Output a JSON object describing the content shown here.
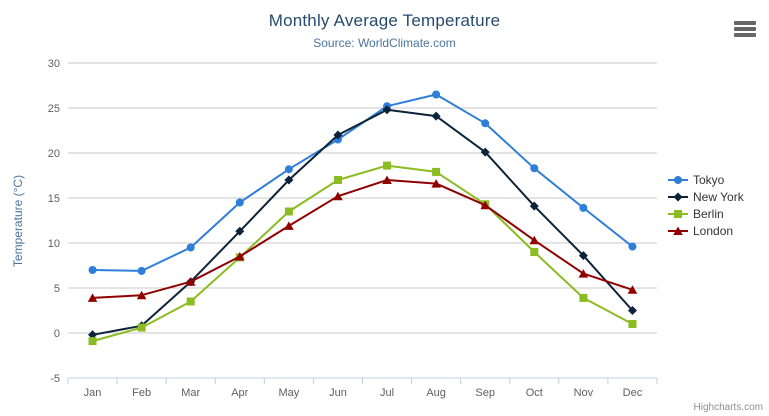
{
  "chart": {
    "title": "Monthly Average Temperature",
    "subtitle": "Source: WorldClimate.com",
    "credit": "Highcharts.com",
    "export_icon": "hamburger-icon"
  },
  "chart_data": {
    "type": "line",
    "title": "Monthly Average Temperature",
    "subtitle": "Source: WorldClimate.com",
    "categories": [
      "Jan",
      "Feb",
      "Mar",
      "Apr",
      "May",
      "Jun",
      "Jul",
      "Aug",
      "Sep",
      "Oct",
      "Nov",
      "Dec"
    ],
    "xlabel": "",
    "ylabel": "Temperature (°C)",
    "ylim": [
      -5,
      30
    ],
    "ytick_interval": 5,
    "grid": true,
    "legend_position": "right",
    "series": [
      {
        "name": "Tokyo",
        "color": "#2f7ed8",
        "marker": "circle",
        "values": [
          7.0,
          6.9,
          9.5,
          14.5,
          18.2,
          21.5,
          25.2,
          26.5,
          23.3,
          18.3,
          13.9,
          9.6
        ]
      },
      {
        "name": "New York",
        "color": "#0d233a",
        "marker": "diamond",
        "values": [
          -0.2,
          0.8,
          5.7,
          11.3,
          17.0,
          22.0,
          24.8,
          24.1,
          20.1,
          14.1,
          8.6,
          2.5
        ]
      },
      {
        "name": "Berlin",
        "color": "#8bbc21",
        "marker": "square",
        "values": [
          -0.9,
          0.6,
          3.5,
          8.4,
          13.5,
          17.0,
          18.6,
          17.9,
          14.3,
          9.0,
          3.9,
          1.0
        ]
      },
      {
        "name": "London",
        "color": "#910000",
        "marker": "triangle",
        "values": [
          3.9,
          4.2,
          5.7,
          8.5,
          11.9,
          15.2,
          17.0,
          16.6,
          14.2,
          10.3,
          6.6,
          4.8
        ]
      }
    ],
    "style": {
      "grid_color": "#c8c8c8",
      "axis_line_color": "#c0d0e0",
      "tick_label_color": "#606060"
    }
  }
}
